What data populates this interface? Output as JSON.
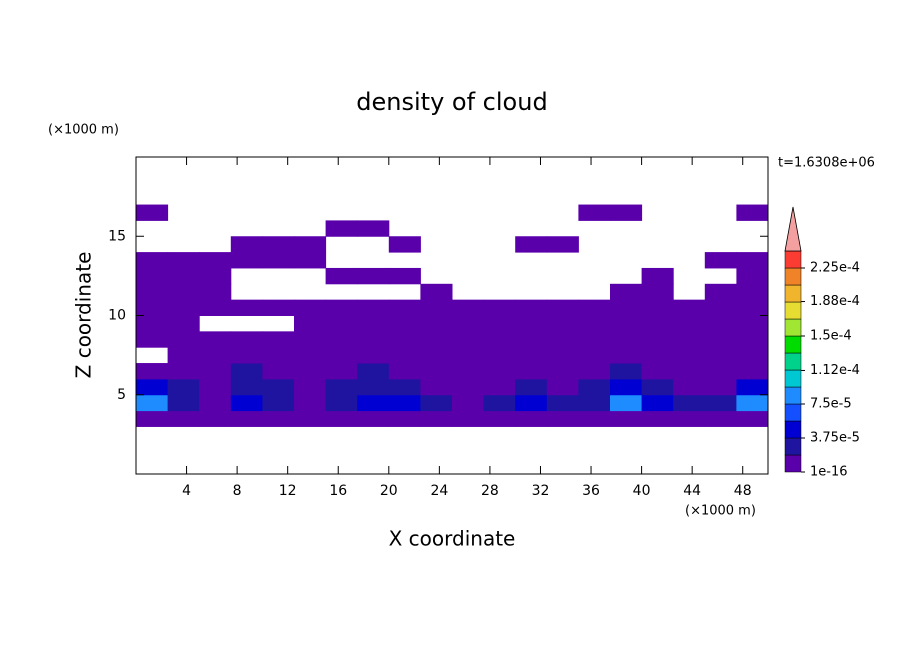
{
  "chart_data": {
    "type": "contour",
    "title": "density of cloud",
    "xlabel": "X coordinate",
    "ylabel": "Z coordinate",
    "xunit": "(×1000 m)",
    "yunit": "(×1000 m)",
    "time_label": "t=1.6308e+06",
    "xlim": [
      0,
      50
    ],
    "ylim": [
      0,
      20
    ],
    "xticks": [
      4,
      8,
      12,
      16,
      20,
      24,
      28,
      32,
      36,
      40,
      44,
      48
    ],
    "yticks": [
      5,
      10,
      15
    ],
    "x": [
      1.25,
      3.75,
      6.25,
      8.75,
      11.25,
      13.75,
      16.25,
      18.75,
      21.25,
      23.75,
      26.25,
      28.75,
      31.25,
      33.75,
      36.25,
      38.75,
      41.25,
      43.75,
      46.25,
      48.75
    ],
    "z": [
      0.5,
      1.5,
      2.5,
      3.5,
      4.5,
      5.5,
      6.5,
      7.5,
      8.5,
      9.5,
      10.5,
      11.5,
      12.5,
      13.5,
      14.5,
      15.5,
      16.5,
      17.5,
      18.5,
      19.5
    ],
    "values": [
      [
        null,
        null,
        null,
        null,
        null,
        null,
        null,
        null,
        null,
        null,
        null,
        null,
        null,
        null,
        null,
        null,
        null,
        null,
        null,
        null
      ],
      [
        null,
        null,
        null,
        null,
        null,
        null,
        null,
        null,
        null,
        null,
        null,
        null,
        null,
        null,
        null,
        null,
        null,
        null,
        null,
        null
      ],
      [
        null,
        null,
        null,
        null,
        null,
        null,
        null,
        null,
        null,
        null,
        null,
        null,
        null,
        null,
        null,
        null,
        null,
        null,
        null,
        null
      ],
      [
        1e-16,
        1e-16,
        1e-16,
        1e-16,
        1e-16,
        1e-16,
        1e-16,
        1e-16,
        1e-16,
        1e-16,
        1e-16,
        1e-16,
        1e-16,
        1e-16,
        1e-16,
        1e-16,
        1e-16,
        1e-16,
        1e-16,
        1e-16
      ],
      [
        8e-05,
        2e-05,
        1e-16,
        5e-05,
        2e-05,
        1e-16,
        2e-05,
        5e-05,
        5e-05,
        2e-05,
        1e-16,
        2e-05,
        5e-05,
        2e-05,
        2e-05,
        8e-05,
        5e-05,
        2e-05,
        2e-05,
        8e-05
      ],
      [
        5e-05,
        2e-05,
        1e-16,
        2e-05,
        2e-05,
        1e-16,
        2e-05,
        2e-05,
        2e-05,
        1e-16,
        1e-16,
        1e-16,
        2e-05,
        1e-16,
        2e-05,
        5e-05,
        2e-05,
        1e-16,
        1e-16,
        5e-05
      ],
      [
        1e-16,
        1e-16,
        1e-16,
        2e-05,
        1e-16,
        1e-16,
        1e-16,
        2e-05,
        1e-16,
        1e-16,
        1e-16,
        1e-16,
        1e-16,
        1e-16,
        1e-16,
        2e-05,
        1e-16,
        1e-16,
        1e-16,
        1e-16
      ],
      [
        null,
        1e-16,
        1e-16,
        1e-16,
        1e-16,
        1e-16,
        1e-16,
        1e-16,
        1e-16,
        1e-16,
        1e-16,
        1e-16,
        1e-16,
        1e-16,
        1e-16,
        1e-16,
        1e-16,
        1e-16,
        1e-16,
        1e-16
      ],
      [
        1e-16,
        1e-16,
        1e-16,
        1e-16,
        1e-16,
        1e-16,
        1e-16,
        1e-16,
        1e-16,
        1e-16,
        1e-16,
        1e-16,
        1e-16,
        1e-16,
        1e-16,
        1e-16,
        1e-16,
        1e-16,
        1e-16,
        1e-16
      ],
      [
        1e-16,
        1e-16,
        null,
        null,
        null,
        1e-16,
        1e-16,
        1e-16,
        1e-16,
        1e-16,
        1e-16,
        1e-16,
        1e-16,
        1e-16,
        1e-16,
        1e-16,
        1e-16,
        1e-16,
        1e-16,
        1e-16
      ],
      [
        1e-16,
        1e-16,
        1e-16,
        1e-16,
        1e-16,
        1e-16,
        1e-16,
        1e-16,
        1e-16,
        1e-16,
        1e-16,
        1e-16,
        1e-16,
        1e-16,
        1e-16,
        1e-16,
        1e-16,
        1e-16,
        1e-16,
        1e-16
      ],
      [
        1e-16,
        1e-16,
        1e-16,
        null,
        null,
        null,
        null,
        null,
        null,
        1e-16,
        null,
        null,
        null,
        null,
        null,
        1e-16,
        1e-16,
        null,
        1e-16,
        1e-16
      ],
      [
        1e-16,
        1e-16,
        1e-16,
        null,
        null,
        null,
        1e-16,
        1e-16,
        1e-16,
        null,
        null,
        null,
        null,
        null,
        null,
        null,
        1e-16,
        null,
        null,
        1e-16
      ],
      [
        1e-16,
        1e-16,
        1e-16,
        1e-16,
        1e-16,
        1e-16,
        null,
        null,
        null,
        null,
        null,
        null,
        null,
        null,
        null,
        null,
        null,
        null,
        1e-16,
        1e-16
      ],
      [
        null,
        null,
        null,
        1e-16,
        1e-16,
        1e-16,
        null,
        null,
        1e-16,
        null,
        null,
        null,
        1e-16,
        1e-16,
        null,
        null,
        null,
        null,
        null,
        null
      ],
      [
        null,
        null,
        null,
        null,
        null,
        null,
        1e-16,
        1e-16,
        null,
        null,
        null,
        null,
        null,
        null,
        null,
        null,
        null,
        null,
        null,
        null
      ],
      [
        1e-16,
        null,
        null,
        null,
        null,
        null,
        null,
        null,
        null,
        null,
        null,
        null,
        null,
        null,
        1e-16,
        1e-16,
        null,
        null,
        null,
        1e-16
      ],
      [
        null,
        null,
        null,
        null,
        null,
        null,
        null,
        null,
        null,
        null,
        null,
        null,
        null,
        null,
        null,
        null,
        null,
        null,
        null,
        null
      ],
      [
        null,
        null,
        null,
        null,
        null,
        null,
        null,
        null,
        null,
        null,
        null,
        null,
        null,
        null,
        null,
        null,
        null,
        null,
        null,
        null
      ],
      [
        null,
        null,
        null,
        null,
        null,
        null,
        null,
        null,
        null,
        null,
        null,
        null,
        null,
        null,
        null,
        null,
        null,
        null,
        null,
        null
      ]
    ],
    "colorbar": {
      "levels": [
        1e-16,
        1.875e-05,
        3.75e-05,
        5.625e-05,
        7.5e-05,
        9.375e-05,
        0.0001125,
        0.00013125,
        0.00015,
        0.00016875,
        0.0001875,
        0.00020625,
        0.000225,
        0.00024375
      ],
      "colors": [
        "#5a00ab",
        "#1e14a0",
        "#0000d2",
        "#1450ff",
        "#1e8cff",
        "#00c8d2",
        "#00d28c",
        "#00dc00",
        "#a0e632",
        "#e6dc32",
        "#f0b42d",
        "#f08228",
        "#fa3c32"
      ],
      "extend_color": "#f4a0a0",
      "ticks": [
        {
          "value": 1e-16,
          "label": "1e-16"
        },
        {
          "value": 3.75e-05,
          "label": "3.75e-5"
        },
        {
          "value": 7.5e-05,
          "label": "7.5e-5"
        },
        {
          "value": 0.000112,
          "label": "1.12e-4"
        },
        {
          "value": 0.00015,
          "label": "1.5e-4"
        },
        {
          "value": 0.000188,
          "label": "1.88e-4"
        },
        {
          "value": 0.000225,
          "label": "2.25e-4"
        }
      ]
    }
  }
}
